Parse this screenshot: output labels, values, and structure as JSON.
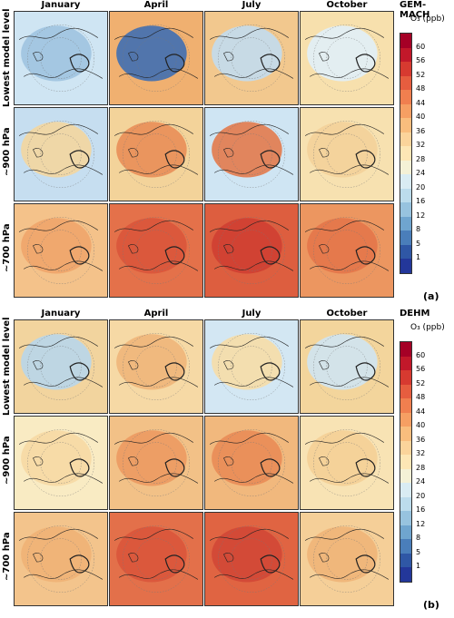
{
  "months": [
    "January",
    "April",
    "July",
    "October"
  ],
  "row_labels": [
    "Lowest model level",
    "~900 hPa",
    "~700 hPa"
  ],
  "panels": [
    {
      "model": "GEM-MACH",
      "tag": "(a)",
      "levels": [
        [
          {
            "c": "#9ec3e0",
            "s": "#cfe5f3"
          },
          {
            "c": "#3f6fb3",
            "s": "#f0b070"
          },
          {
            "c": "#c2dcee",
            "s": "#f2c88e"
          },
          {
            "c": "#e0eff8",
            "s": "#f7e0ad"
          }
        ],
        [
          {
            "c": "#f3d69e",
            "s": "#c6def0"
          },
          {
            "c": "#e98e58",
            "s": "#f3d39a"
          },
          {
            "c": "#e27a4c",
            "s": "#cfe5f3"
          },
          {
            "c": "#f3d19a",
            "s": "#f7e1b0"
          }
        ],
        [
          {
            "c": "#efa56a",
            "s": "#f4c28a"
          },
          {
            "c": "#d9553b",
            "s": "#e4714a"
          },
          {
            "c": "#cf3f32",
            "s": "#dd5e3f"
          },
          {
            "c": "#e4754a",
            "s": "#ec9660"
          }
        ]
      ]
    },
    {
      "model": "DEHM",
      "tag": "(b)",
      "levels": [
        [
          {
            "c": "#b8d6ea",
            "s": "#f2d49e"
          },
          {
            "c": "#f0b57a",
            "s": "#f6d9a5"
          },
          {
            "c": "#f6dda7",
            "s": "#d3e7f3"
          },
          {
            "c": "#cfe4f2",
            "s": "#f3d59c"
          }
        ],
        [
          {
            "c": "#f6d9a4",
            "s": "#f9ebc3"
          },
          {
            "c": "#ec9a62",
            "s": "#f2c187"
          },
          {
            "c": "#e98c57",
            "s": "#f1b87d"
          },
          {
            "c": "#f4cf96",
            "s": "#f8e3b4"
          }
        ],
        [
          {
            "c": "#f0b276",
            "s": "#f3c48c"
          },
          {
            "c": "#d9553b",
            "s": "#e3704a"
          },
          {
            "c": "#d24736",
            "s": "#e06442"
          },
          {
            "c": "#f0b478",
            "s": "#f5cf98"
          }
        ]
      ]
    }
  ],
  "colorbar": {
    "unit_label": "O₃ (ppb)",
    "ticks": [
      "60",
      "56",
      "52",
      "48",
      "44",
      "40",
      "36",
      "32",
      "28",
      "24",
      "20",
      "16",
      "12",
      "8",
      "5",
      "1"
    ],
    "colors": [
      "#a50026",
      "#c2182a",
      "#d73a30",
      "#e65d3f",
      "#f07f4f",
      "#f69f63",
      "#f9bd7d",
      "#fbd49b",
      "#fde6b5",
      "#f4f1d6",
      "#d9ecf3",
      "#bcdcec",
      "#97c3df",
      "#6fa5cf",
      "#4a7eba",
      "#2f57a5",
      "#23379a"
    ]
  }
}
